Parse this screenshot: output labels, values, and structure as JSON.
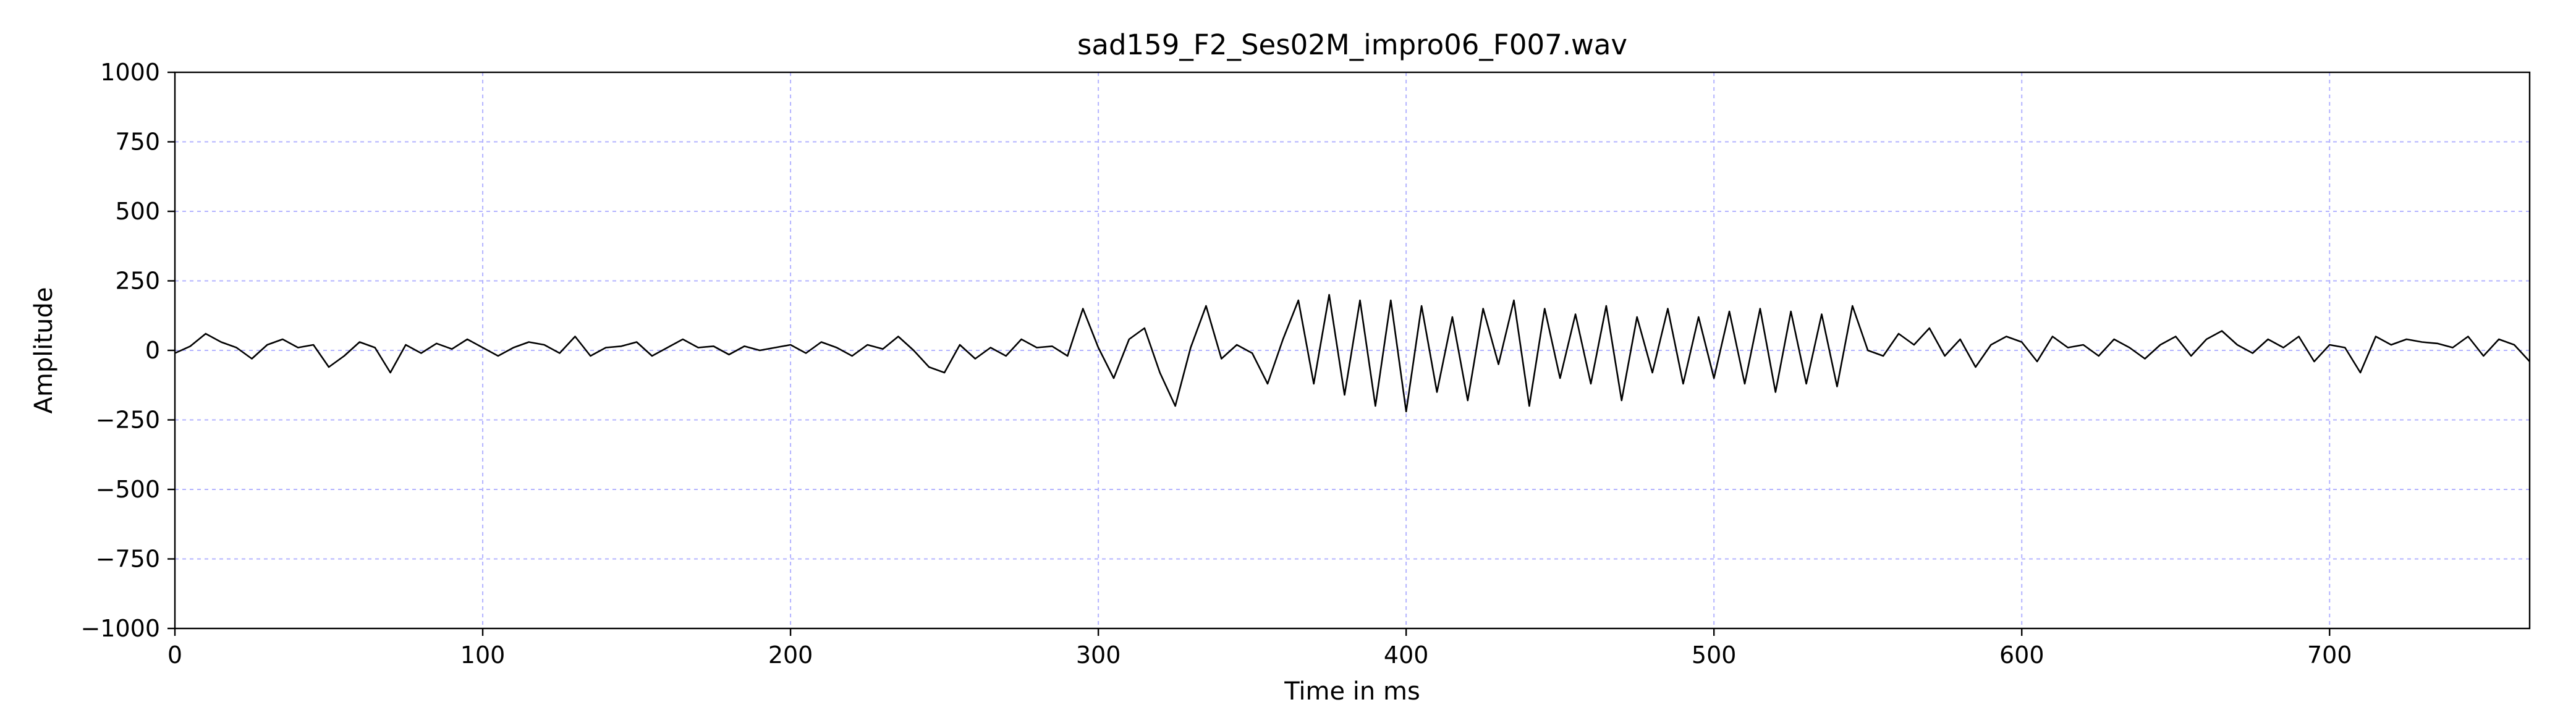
{
  "chart_data": {
    "type": "line",
    "title": "sad159_F2_Ses02M_impro06_F007.wav",
    "xlabel": "Time in ms",
    "ylabel": "Amplitude",
    "xlim": [
      0,
      765
    ],
    "ylim": [
      -1000,
      1000
    ],
    "x_ticks": [
      0,
      100,
      200,
      300,
      400,
      500,
      600,
      700
    ],
    "x_tick_labels": [
      "0",
      "100",
      "200",
      "300",
      "400",
      "500",
      "600",
      "700"
    ],
    "y_ticks": [
      1000,
      750,
      500,
      250,
      0,
      -250,
      -500,
      -750,
      -1000
    ],
    "y_tick_labels": [
      "1000",
      "750",
      "500",
      "250",
      "0",
      "−250",
      "−500",
      "−750",
      "−1000"
    ],
    "grid": true,
    "grid_color": "#b3b3ff",
    "line_color": "#000000",
    "series": [
      {
        "x": [
          0,
          5,
          10,
          15,
          20,
          25,
          30,
          35,
          40,
          45,
          50,
          55,
          60,
          65,
          70,
          75,
          80,
          85,
          90,
          95,
          100,
          105,
          110,
          115,
          120,
          125,
          130,
          135,
          140,
          145,
          150,
          155,
          160,
          165,
          170,
          175,
          180,
          185,
          190,
          195,
          200,
          205,
          210,
          215,
          220,
          225,
          230,
          235,
          240,
          245,
          250,
          255,
          260,
          265,
          270,
          275,
          280,
          285,
          290,
          295,
          300,
          305,
          310,
          315,
          320,
          325,
          330,
          335,
          340,
          345,
          350,
          355,
          360,
          365,
          370,
          375,
          380,
          385,
          390,
          395,
          400,
          405,
          410,
          415,
          420,
          425,
          430,
          435,
          440,
          445,
          450,
          455,
          460,
          465,
          470,
          475,
          480,
          485,
          490,
          495,
          500,
          505,
          510,
          515,
          520,
          525,
          530,
          535,
          540,
          545,
          550,
          555,
          560,
          565,
          570,
          575,
          580,
          585,
          590,
          595,
          600,
          605,
          610,
          615,
          620,
          625,
          630,
          635,
          640,
          645,
          650,
          655,
          660,
          665,
          670,
          675,
          680,
          685,
          690,
          695,
          700,
          705,
          710,
          715,
          720,
          725,
          730,
          735,
          740,
          745,
          750,
          755,
          760,
          765
        ],
        "y": [
          -10,
          15,
          60,
          30,
          10,
          -30,
          20,
          40,
          10,
          20,
          -60,
          -20,
          30,
          10,
          -80,
          20,
          -10,
          25,
          5,
          40,
          10,
          -20,
          10,
          30,
          20,
          -10,
          50,
          -20,
          10,
          15,
          30,
          -20,
          10,
          40,
          10,
          15,
          -15,
          15,
          0,
          10,
          20,
          -10,
          30,
          10,
          -20,
          20,
          5,
          50,
          0,
          -60,
          -80,
          20,
          -30,
          10,
          -20,
          40,
          10,
          15,
          -20,
          150,
          10,
          -100,
          40,
          80,
          -80,
          -200,
          10,
          160,
          -30,
          20,
          -10,
          -120,
          40,
          180,
          -120,
          200,
          -160,
          180,
          -200,
          180,
          -220,
          160,
          -150,
          120,
          -180,
          150,
          -50,
          180,
          -200,
          150,
          -100,
          130,
          -120,
          160,
          -180,
          120,
          -80,
          150,
          -120,
          120,
          -100,
          140,
          -120,
          150,
          -150,
          140,
          -120,
          130,
          -130,
          160,
          0,
          -20,
          60,
          20,
          80,
          -20,
          40,
          -60,
          20,
          50,
          30,
          -40,
          50,
          10,
          20,
          -20,
          40,
          10,
          -30,
          20,
          50,
          -20,
          40,
          70,
          20,
          -10,
          40,
          10,
          50,
          -40,
          20,
          10,
          -80,
          50,
          20,
          40,
          30,
          25,
          10,
          50,
          -20,
          40,
          20,
          -40
        ]
      }
    ]
  }
}
